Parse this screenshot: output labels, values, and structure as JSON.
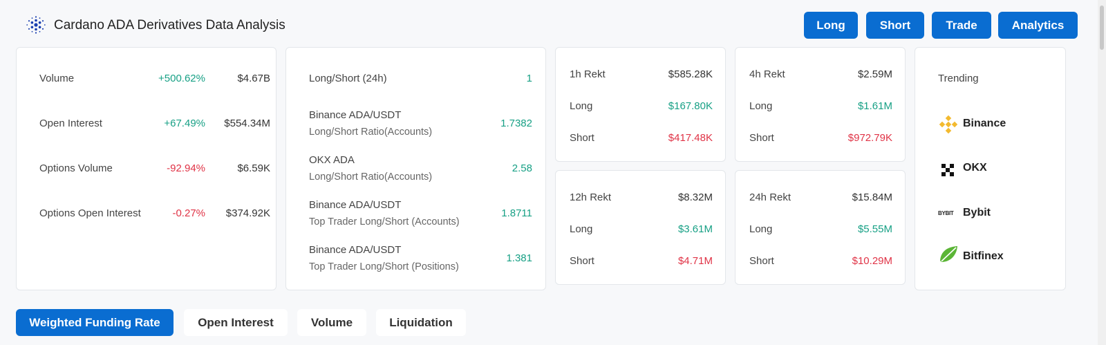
{
  "header": {
    "title": "Cardano ADA Derivatives Data Analysis",
    "buttons": [
      "Long",
      "Short",
      "Trade",
      "Analytics"
    ]
  },
  "stats": {
    "rows": [
      {
        "label": "Volume",
        "change": "+500.62%",
        "value": "$4.67B"
      },
      {
        "label": "Open Interest",
        "change": "+67.49%",
        "value": "$554.34M"
      },
      {
        "label": "Options Volume",
        "change": "-92.94%",
        "value": "$6.59K"
      },
      {
        "label": "Options Open Interest",
        "change": "-0.27%",
        "value": "$374.92K"
      }
    ]
  },
  "ratios": {
    "long_short_label": "Long/Short (24h)",
    "long_short_value": "1",
    "rows": [
      {
        "title": "Binance ADA/USDT",
        "subtitle": "Long/Short Ratio(Accounts)",
        "value": "1.7382"
      },
      {
        "title": "OKX ADA",
        "subtitle": "Long/Short Ratio(Accounts)",
        "value": "2.58"
      },
      {
        "title": "Binance ADA/USDT",
        "subtitle": "Top Trader Long/Short (Accounts)",
        "value": "1.8711"
      },
      {
        "title": "Binance ADA/USDT",
        "subtitle": "Top Trader Long/Short (Positions)",
        "value": "1.381"
      }
    ]
  },
  "rekt": [
    {
      "period": "1h Rekt",
      "total": "$585.28K",
      "long_label": "Long",
      "long": "$167.80K",
      "short_label": "Short",
      "short": "$417.48K"
    },
    {
      "period": "4h Rekt",
      "total": "$2.59M",
      "long_label": "Long",
      "long": "$1.61M",
      "short_label": "Short",
      "short": "$972.79K"
    },
    {
      "period": "12h Rekt",
      "total": "$8.32M",
      "long_label": "Long",
      "long": "$3.61M",
      "short_label": "Short",
      "short": "$4.71M"
    },
    {
      "period": "24h Rekt",
      "total": "$15.84M",
      "long_label": "Long",
      "long": "$5.55M",
      "short_label": "Short",
      "short": "$10.29M"
    }
  ],
  "trending": {
    "title": "Trending",
    "exchanges": [
      "Binance",
      "OKX",
      "Bybit",
      "Bitfinex"
    ],
    "bybit_logo_text": "BYBIT"
  },
  "tabs": [
    "Weighted Funding Rate",
    "Open Interest",
    "Volume",
    "Liquidation"
  ],
  "colors": {
    "accent": "#0a6dd1",
    "positive": "#17a085",
    "negative": "#e03346"
  }
}
